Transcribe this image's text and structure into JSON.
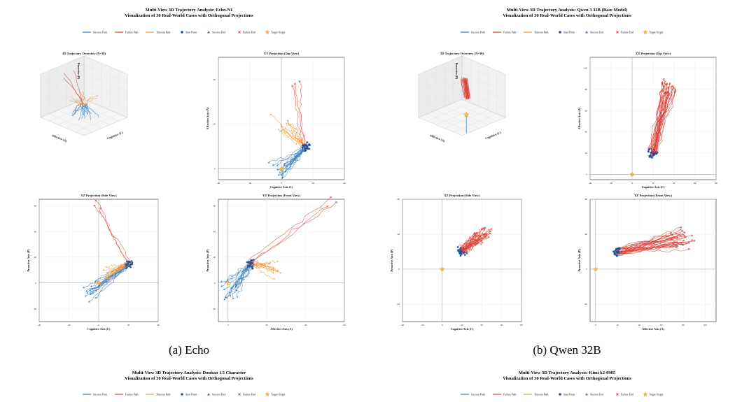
{
  "colors": {
    "success": "#3a7dbf",
    "failure": "#d9453b",
    "timeout": "#f39a3c",
    "start": "#1f4e9e",
    "target": "#f6b93b",
    "grid": "#e8e8e8",
    "frame": "#222222"
  },
  "legend_labels": [
    "Success Path",
    "Failure Path",
    "Timeout Path",
    "Start Point",
    "Success End",
    "Failure End",
    "Target Origin"
  ],
  "captions": [
    "(a) Echo",
    "(b) Qwen 32B"
  ],
  "panel_titles": [
    "3D Trajectory Overview (N=30)",
    "XY Projection (Top View)",
    "XZ Projection (Side View)",
    "YZ Projection (Front View)"
  ],
  "figures": [
    {
      "title": "Multi-View 3D Trajectory Analysis: Echo-N1",
      "subtitle": "Visualization of 30 Real-World Cases with Orthogonal Projections"
    },
    {
      "title": "Multi-View 3D Trajectory Analysis: Qwen 3 32B (Base Model)",
      "subtitle": "Visualization of 30 Real-World Cases with Orthogonal Projections"
    },
    {
      "title": "Multi-View 3D Trajectory Analysis: Doubao 1.5 Character",
      "subtitle": "Visualization of 30 Real-World Cases with Orthogonal Projections"
    },
    {
      "title": "Multi-View 3D Trajectory Analysis: Kimi k2-0905",
      "subtitle": "Visualization of 30 Real-World Cases with Orthogonal Projections"
    }
  ],
  "axis_labels": {
    "cognitive": "Cognitive Axis (C)",
    "affective": "Affective Axis (A)",
    "proactive": "Proactive Axis (P)",
    "cognitive_3d": "Cognitive (C)",
    "affective_3d": "Affective (A)",
    "proactive_3d": "Proactive (P)"
  },
  "chart_data": [
    {
      "type": "line",
      "figure": "Echo-N1",
      "panel": "XY Projection (Top View)",
      "xlabel": "Cognitive Axis (C)",
      "ylabel": "Affective Axis (A)",
      "xlim": [
        -40,
        40
      ],
      "ylim": [
        -5,
        50
      ],
      "series": [
        {
          "name": "Success Path",
          "count": 16,
          "start_center": [
            15,
            10
          ],
          "end_center": [
            0,
            0
          ]
        },
        {
          "name": "Timeout Path",
          "count": 11,
          "start_center": [
            15,
            10
          ],
          "end_center": [
            0,
            20
          ]
        },
        {
          "name": "Failure Path",
          "count": 3,
          "start_center": [
            15,
            10
          ],
          "end_center": [
            10,
            40
          ]
        }
      ]
    },
    {
      "type": "line",
      "figure": "Echo-N1",
      "panel": "XZ Projection (Side View)",
      "xlabel": "Cognitive Axis (C)",
      "ylabel": "Proactive Axis (P)",
      "xlim": [
        -40,
        40
      ],
      "ylim": [
        -30,
        65
      ],
      "series": [
        {
          "name": "Success Path",
          "count": 16,
          "start_center": [
            20,
            15
          ],
          "end_center": [
            -5,
            -5
          ]
        },
        {
          "name": "Timeout Path",
          "count": 11,
          "start_center": [
            20,
            15
          ],
          "end_center": [
            5,
            5
          ]
        },
        {
          "name": "Failure Path",
          "count": 3,
          "start_center": [
            20,
            15
          ],
          "end_center": [
            0,
            62
          ]
        }
      ]
    },
    {
      "type": "line",
      "figure": "Echo-N1",
      "panel": "YZ Projection (Front View)",
      "xlabel": "Affective Axis (A)",
      "ylabel": "Proactive Axis (P)",
      "xlim": [
        -5,
        60
      ],
      "ylim": [
        -30,
        65
      ],
      "series": [
        {
          "name": "Success Path",
          "count": 16,
          "start_center": [
            12,
            15
          ],
          "end_center": [
            0,
            -5
          ]
        },
        {
          "name": "Timeout Path",
          "count": 11,
          "start_center": [
            12,
            15
          ],
          "end_center": [
            25,
            10
          ]
        },
        {
          "name": "Failure Path",
          "count": 3,
          "start_center": [
            12,
            15
          ],
          "end_center": [
            55,
            62
          ]
        }
      ]
    },
    {
      "type": "line",
      "figure": "Qwen 3 32B (Base Model)",
      "panel": "XY Projection (Top View)",
      "xlabel": "Cognitive Axis (C)",
      "ylabel": "Affective Axis (A)",
      "xlim": [
        -40,
        80
      ],
      "ylim": [
        -5,
        110
      ],
      "series": [
        {
          "name": "Failure Path",
          "count": 30,
          "start_center": [
            20,
            20
          ],
          "end_center": [
            35,
            80
          ]
        }
      ]
    },
    {
      "type": "line",
      "figure": "Qwen 3 32B (Base Model)",
      "panel": "XZ Projection (Side View)",
      "xlabel": "Cognitive Axis (C)",
      "ylabel": "Proactive Axis (P)",
      "xlim": [
        -40,
        80
      ],
      "ylim": [
        -60,
        80
      ],
      "series": [
        {
          "name": "Failure Path",
          "count": 30,
          "start_center": [
            20,
            20
          ],
          "end_center": [
            40,
            40
          ]
        }
      ]
    },
    {
      "type": "line",
      "figure": "Qwen 3 32B (Base Model)",
      "panel": "YZ Projection (Front View)",
      "xlabel": "Affective Axis (A)",
      "ylabel": "Proactive Axis (P)",
      "xlim": [
        -5,
        110
      ],
      "ylim": [
        -60,
        80
      ],
      "series": [
        {
          "name": "Failure Path",
          "count": 30,
          "start_center": [
            20,
            20
          ],
          "end_center": [
            80,
            35
          ]
        }
      ]
    }
  ]
}
